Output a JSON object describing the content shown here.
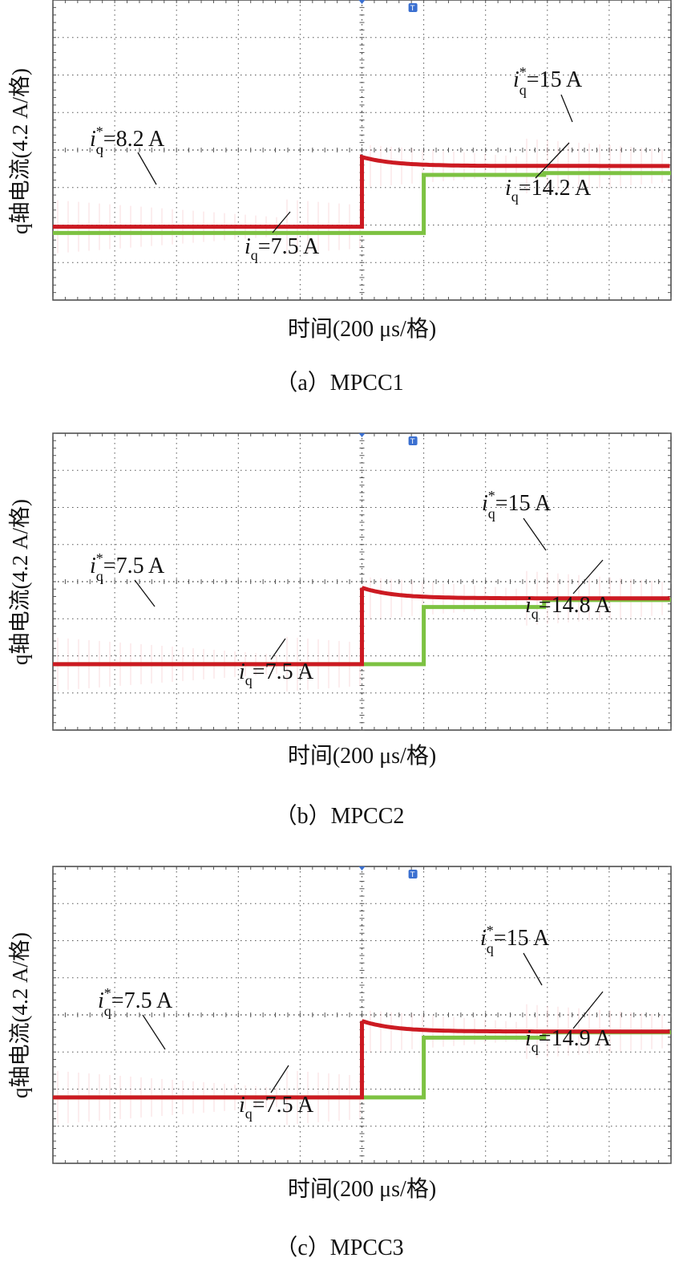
{
  "common": {
    "ylabel": "q轴电流(4.2 A/格)",
    "xlabel": "时间(200 μs/格)",
    "colors": {
      "reference": "#cc1a22",
      "actual": "#7dc242",
      "grid": "#555555",
      "trigger": "#3a6fd0"
    }
  },
  "chart_data": [
    {
      "type": "line",
      "caption": "（a）MPCC1",
      "xlabel": "时间(200 μs/格)",
      "ylabel": "q轴电流(4.2 A/格)",
      "annotations": [
        {
          "sym": "i",
          "sup": "*",
          "sub": "q",
          "text": "=8.2 A"
        },
        {
          "sym": "i",
          "sup": "",
          "sub": "q",
          "text": "=7.5 A"
        },
        {
          "sym": "i",
          "sup": "*",
          "sub": "q",
          "text": "=15 A"
        },
        {
          "sym": "i",
          "sup": "",
          "sub": "q",
          "text": "=14.2 A"
        }
      ],
      "series": [
        {
          "name": "iq*",
          "before": 8.2,
          "after": 15,
          "overshoot": 1.0
        },
        {
          "name": "iq",
          "before": 7.5,
          "after": 14.2,
          "transition": 14.0
        }
      ]
    },
    {
      "type": "line",
      "caption": "（b）MPCC2",
      "xlabel": "时间(200 μs/格)",
      "ylabel": "q轴电流(4.2 A/格)",
      "annotations": [
        {
          "sym": "i",
          "sup": "*",
          "sub": "q",
          "text": "=7.5 A"
        },
        {
          "sym": "i",
          "sup": "",
          "sub": "q",
          "text": "=7.5 A"
        },
        {
          "sym": "i",
          "sup": "*",
          "sub": "q",
          "text": "=15 A"
        },
        {
          "sym": "i",
          "sup": "",
          "sub": "q",
          "text": "=14.8 A"
        }
      ],
      "series": [
        {
          "name": "iq*",
          "before": 7.5,
          "after": 15,
          "overshoot": 1.2
        },
        {
          "name": "iq",
          "before": 7.5,
          "after": 14.8,
          "transition": 14.0
        }
      ]
    },
    {
      "type": "line",
      "caption": "（c）MPCC3",
      "xlabel": "时间(200 μs/格)",
      "ylabel": "q轴电流(4.2 A/格)",
      "annotations": [
        {
          "sym": "i",
          "sup": "*",
          "sub": "q",
          "text": "=7.5 A"
        },
        {
          "sym": "i",
          "sup": "",
          "sub": "q",
          "text": "=7.5 A"
        },
        {
          "sym": "i",
          "sup": "*",
          "sub": "q",
          "text": "=15 A"
        },
        {
          "sym": "i",
          "sup": "",
          "sub": "q",
          "text": "=14.9 A"
        }
      ],
      "series": [
        {
          "name": "iq*",
          "before": 7.5,
          "after": 15,
          "overshoot": 1.2
        },
        {
          "name": "iq",
          "before": 7.5,
          "after": 14.9,
          "transition": 14.3
        }
      ]
    }
  ]
}
